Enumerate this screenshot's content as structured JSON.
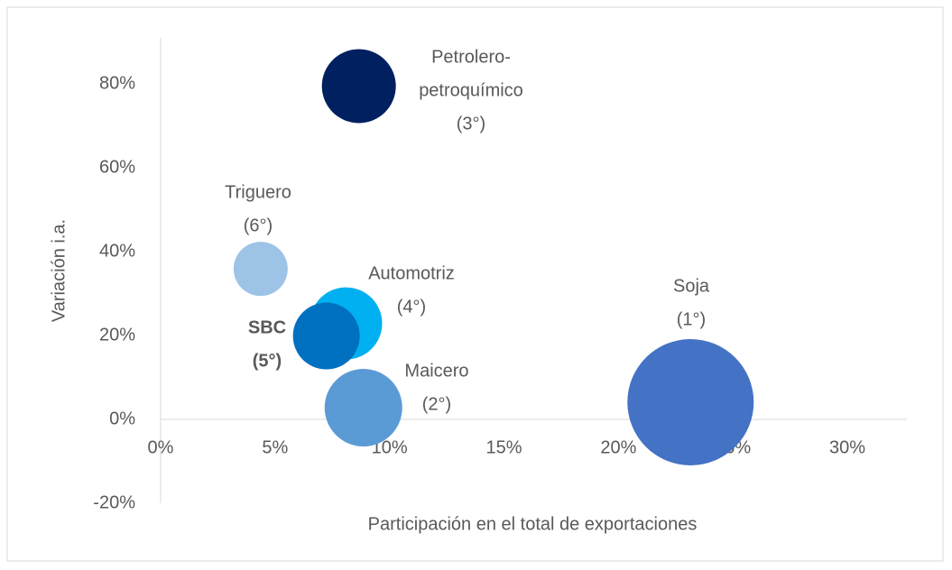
{
  "chart_data": {
    "type": "bubble",
    "x_label": "Participación en el total de exportaciones",
    "y_label": "Variación i.a.",
    "xlim": [
      0,
      32.6
    ],
    "ylim": [
      -20,
      91
    ],
    "xticks": [
      {
        "value": 0,
        "label": "0%"
      },
      {
        "value": 5,
        "label": "5%"
      },
      {
        "value": 10,
        "label": "10%"
      },
      {
        "value": 15,
        "label": "15%"
      },
      {
        "value": 20,
        "label": "20%"
      },
      {
        "value": 25,
        "label": "25%"
      },
      {
        "value": 30,
        "label": "30%"
      }
    ],
    "yticks": [
      {
        "value": -20,
        "label": "-20%"
      },
      {
        "value": 0,
        "label": "0%"
      },
      {
        "value": 20,
        "label": "20%"
      },
      {
        "value": 40,
        "label": "40%"
      },
      {
        "value": 60,
        "label": "60%"
      },
      {
        "value": 80,
        "label": "80%"
      }
    ],
    "grid": false,
    "series": [
      {
        "label": [
          "Soja",
          "(1°)"
        ],
        "color": "#4472c4",
        "x": 23.15,
        "y": 4.1,
        "size": 49
      },
      {
        "label": [
          "Maicero",
          "(2°)"
        ],
        "color": "#5b9bd5",
        "x": 8.86,
        "y": 2.8,
        "size": 18.5
      },
      {
        "label": [
          "Petrolero-",
          "petroquímico",
          "(3°)"
        ],
        "color": "#002060",
        "x": 8.66,
        "y": 79.5,
        "size": 16.8
      },
      {
        "label": [
          "Automotriz",
          "(4°)"
        ],
        "color": "#00b0f0",
        "x": 8.1,
        "y": 22.9,
        "size": 16
      },
      {
        "label": [
          "SBC",
          "(5°)"
        ],
        "color": "#0070c0",
        "x": 7.24,
        "y": 19.9,
        "size": 13.7,
        "bold": true
      },
      {
        "label": [
          "Triguero",
          "(6°)"
        ],
        "color": "#9dc3e6",
        "x": 4.37,
        "y": 35.9,
        "size": 9
      }
    ]
  }
}
